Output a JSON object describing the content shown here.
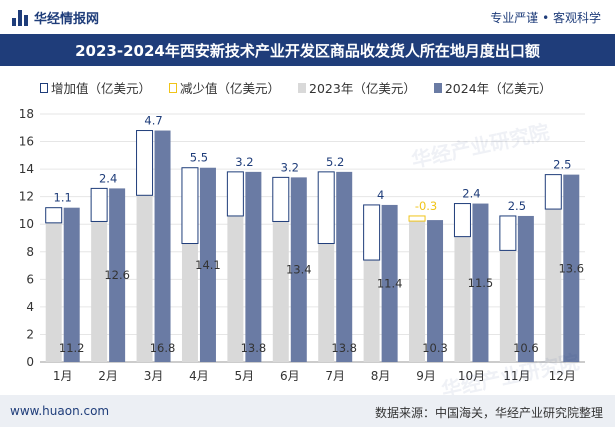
{
  "header": {
    "brand": "华经情报网",
    "tagline": "专业严谨 • 客观科学"
  },
  "footer": {
    "site": "www.huaon.com",
    "source": "数据来源：中国海关，华经产业研究院整理"
  },
  "watermark": "华经产业研究院",
  "colors": {
    "increase": "#1f3d7a",
    "decrease": "#f0c419",
    "y2023": "#d9d9d9",
    "y2024": "#6a7ba4",
    "title_bg": "#1f3d7a"
  },
  "chart_data": {
    "type": "bar",
    "title": "2023-2024年西安新技术产业开发区商品收发货人所在地月度出口额",
    "categories": [
      "1月",
      "2月",
      "3月",
      "4月",
      "5月",
      "6月",
      "7月",
      "8月",
      "9月",
      "10月",
      "11月",
      "12月"
    ],
    "series": [
      {
        "name": "增加值（亿美元）",
        "values": [
          1.1,
          2.4,
          4.7,
          5.5,
          3.2,
          3.2,
          5.2,
          4,
          null,
          2.4,
          2.5,
          2.5
        ]
      },
      {
        "name": "减少值（亿美元）",
        "values": [
          null,
          null,
          null,
          null,
          null,
          null,
          null,
          null,
          -0.3,
          null,
          null,
          null
        ]
      },
      {
        "name": "2023年（亿美元）",
        "values": [
          10.1,
          10.2,
          12.1,
          8.6,
          10.6,
          10.2,
          8.6,
          7.4,
          10.6,
          9.1,
          8.1,
          11.1
        ]
      },
      {
        "name": "2024年（亿美元）",
        "values": [
          11.2,
          12.6,
          16.8,
          14.1,
          13.8,
          13.4,
          13.8,
          11.4,
          10.3,
          11.5,
          10.6,
          13.6
        ]
      }
    ],
    "ylim": [
      0,
      18
    ],
    "yticks": [
      0,
      2,
      4,
      6,
      8,
      10,
      12,
      14,
      16,
      18
    ],
    "legend_position": "top-left",
    "grid": true
  }
}
